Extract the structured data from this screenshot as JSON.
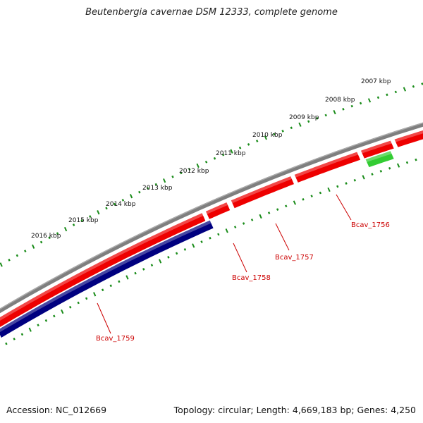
{
  "title": "Beutenbergia cavernae DSM 12333, complete genome",
  "footer": {
    "accession": "Accession: NC_012669",
    "summary": "Topology: circular; Length: 4,669,183 bp; Genes: 4,250"
  },
  "colors": {
    "backbone": "#7f7f7f",
    "forward_gene": "#ee0000",
    "reverse_gene": "#000080",
    "rna_gene": "#33cc33",
    "tick": "#1a8c1a",
    "gene_label": "#cc0000",
    "tick_label": "#111111"
  },
  "scale_labels": [
    "2016 kbp",
    "2015 kbp",
    "2014 kbp",
    "2013 kbp",
    "2012 kbp",
    "2011 kbp",
    "2010 kbp",
    "2009 kbp",
    "2008 kbp",
    "2007 kbp"
  ],
  "gene_labels": [
    "Bcav_1759",
    "Bcav_1758",
    "Bcav_1757",
    "Bcav_1756"
  ]
}
